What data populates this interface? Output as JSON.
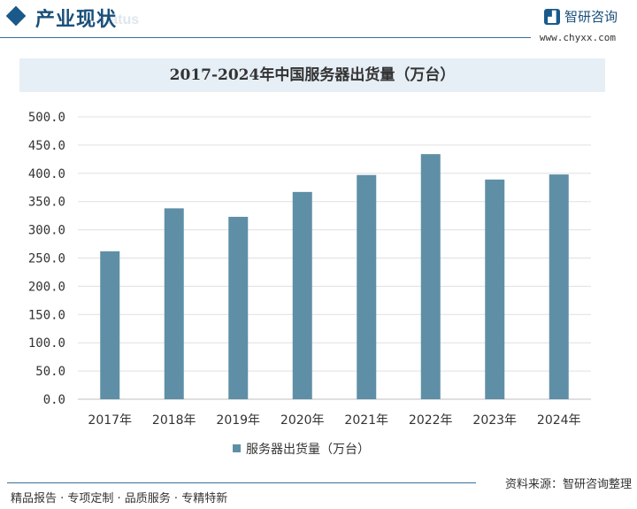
{
  "header": {
    "section_title": "产业现状",
    "section_watermark": "status",
    "brand_name": "智研咨询",
    "brand_url": "www.chyxx.com"
  },
  "chart_data": {
    "type": "bar",
    "title": "2017-2024年中国服务器出货量（万台）",
    "categories": [
      "2017年",
      "2018年",
      "2019年",
      "2020年",
      "2021年",
      "2022年",
      "2023年",
      "2024年"
    ],
    "series": [
      {
        "name": "服务器出货量（万台）",
        "values": [
          262,
          338,
          323,
          367,
          397,
          434,
          389,
          398
        ],
        "color": "#5f8fa6"
      }
    ],
    "ylim": [
      0,
      500
    ],
    "yticks": [
      "0.0",
      "50.0",
      "100.0",
      "150.0",
      "200.0",
      "250.0",
      "300.0",
      "350.0",
      "400.0",
      "450.0",
      "500.0"
    ],
    "grid": true,
    "legend_position": "bottom"
  },
  "footer": {
    "left_text": "精品报告 · 专项定制 · 品质服务 · 专精特新",
    "right_text": "资料来源：智研咨询整理"
  }
}
